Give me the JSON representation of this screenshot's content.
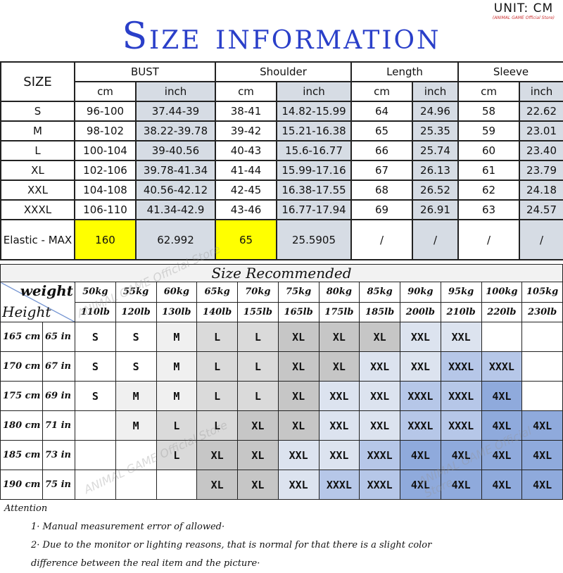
{
  "unit": {
    "label": "UNIT: CM",
    "store": "(ANIMAL GAME Official Store)"
  },
  "title": "Size information",
  "size_chart": {
    "size_header": "SIZE",
    "groups": [
      "BUST",
      "Shoulder",
      "Length",
      "Sleeve"
    ],
    "sub_headers": [
      "cm",
      "inch",
      "cm",
      "inch",
      "cm",
      "inch",
      "cm",
      "inch"
    ],
    "rows": [
      {
        "size": "S",
        "values": [
          "96-100",
          "37.44-39",
          "38-41",
          "14.82-15.99",
          "64",
          "24.96",
          "58",
          "22.62"
        ]
      },
      {
        "size": "M",
        "values": [
          "98-102",
          "38.22-39.78",
          "39-42",
          "15.21-16.38",
          "65",
          "25.35",
          "59",
          "23.01"
        ]
      },
      {
        "size": "L",
        "values": [
          "100-104",
          "39-40.56",
          "40-43",
          "15.6-16.77",
          "66",
          "25.74",
          "60",
          "23.40"
        ]
      },
      {
        "size": "XL",
        "values": [
          "102-106",
          "39.78-41.34",
          "41-44",
          "15.99-17.16",
          "67",
          "26.13",
          "61",
          "23.79"
        ]
      },
      {
        "size": "XXL",
        "values": [
          "104-108",
          "40.56-42.12",
          "42-45",
          "16.38-17.55",
          "68",
          "26.52",
          "62",
          "24.18"
        ]
      },
      {
        "size": "XXXL",
        "values": [
          "106-110",
          "41.34-42.9",
          "43-46",
          "16.77-17.94",
          "69",
          "26.91",
          "63",
          "24.57"
        ]
      }
    ],
    "elastic": {
      "label": "Elastic - MAX",
      "values": [
        "160",
        "62.992",
        "65",
        "25.5905",
        "/",
        "/",
        "/",
        "/"
      ]
    },
    "highlight_color": "#ffff00"
  },
  "recommend": {
    "title": "Size Recommended",
    "weight_label": "weight",
    "height_label": "Height",
    "kg": [
      "50kg",
      "55kg",
      "60kg",
      "65kg",
      "70kg",
      "75kg",
      "80kg",
      "85kg",
      "90kg",
      "95kg",
      "100kg",
      "105kg"
    ],
    "lb": [
      "110lb",
      "120lb",
      "130lb",
      "140lb",
      "155lb",
      "165lb",
      "175lb",
      "185lb",
      "200lb",
      "210lb",
      "220lb",
      "230lb"
    ],
    "rows": [
      {
        "cm": "165 cm",
        "in": "65 in",
        "sizes": [
          "S",
          "S",
          "M",
          "L",
          "L",
          "XL",
          "XL",
          "XL",
          "XXL",
          "XXL",
          "",
          ""
        ]
      },
      {
        "cm": "170 cm",
        "in": "67 in",
        "sizes": [
          "S",
          "S",
          "M",
          "L",
          "L",
          "XL",
          "XL",
          "XXL",
          "XXL",
          "XXXL",
          "XXXL",
          ""
        ]
      },
      {
        "cm": "175 cm",
        "in": "69 in",
        "sizes": [
          "S",
          "M",
          "M",
          "L",
          "L",
          "XL",
          "XXL",
          "XXL",
          "XXXL",
          "XXXL",
          "4XL",
          ""
        ]
      },
      {
        "cm": "180 cm",
        "in": "71 in",
        "sizes": [
          "",
          "M",
          "L",
          "L",
          "XL",
          "XL",
          "XXL",
          "XXL",
          "XXXL",
          "XXXL",
          "4XL",
          "4XL"
        ]
      },
      {
        "cm": "185 cm",
        "in": "73 in",
        "sizes": [
          "",
          "",
          "L",
          "XL",
          "XL",
          "XXL",
          "XXL",
          "XXXL",
          "4XL",
          "4XL",
          "4XL",
          "4XL"
        ]
      },
      {
        "cm": "190 cm",
        "in": "75 in",
        "sizes": [
          "",
          "",
          "",
          "XL",
          "XL",
          "XXL",
          "XXXL",
          "XXXL",
          "4XL",
          "4XL",
          "4XL",
          "4XL"
        ]
      }
    ],
    "size_colors": {
      "S": "#ffffff",
      "M": "#f0f0f0",
      "L": "#dadada",
      "XL": "#c6c6c6",
      "XXL": "#dce3ef",
      "XXXL": "#b6c7e8",
      "4XL": "#8faadc",
      "": "#ffffff"
    }
  },
  "attention": {
    "heading": "Attention",
    "items": [
      "1· Manual measurement error of allowed·",
      "2·  Due to the monitor or lighting reasons, that is normal for that there is a slight color"
    ],
    "continuation": "difference between the real item and the picture·"
  },
  "watermark": "ANIMAL GAME Official Store"
}
